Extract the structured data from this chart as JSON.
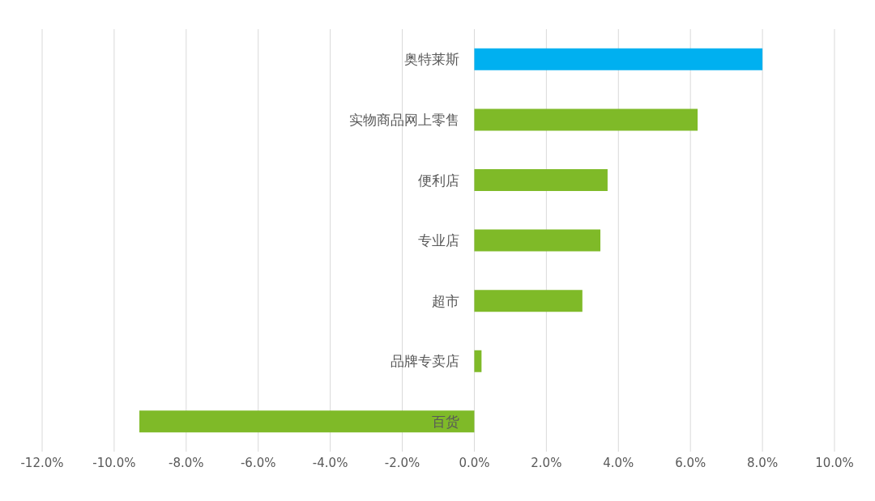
{
  "chart_data": {
    "type": "bar",
    "orientation": "horizontal",
    "categories": [
      "奥特莱斯",
      "实物商品网上零售",
      "便利店",
      "专业店",
      "超市",
      "品牌专卖店",
      "百货"
    ],
    "values": [
      8.0,
      6.2,
      3.7,
      3.5,
      3.0,
      0.2,
      -9.3
    ],
    "colors": [
      "#00b0f0",
      "#7fba28",
      "#7fba28",
      "#7fba28",
      "#7fba28",
      "#7fba28",
      "#7fba28"
    ],
    "xlim": [
      -12,
      10
    ],
    "xticks": [
      {
        "value": -12,
        "label": "-12.0%"
      },
      {
        "value": -10,
        "label": "-10.0%"
      },
      {
        "value": -8,
        "label": "-8.0%"
      },
      {
        "value": -6,
        "label": "-6.0%"
      },
      {
        "value": -4,
        "label": "-4.0%"
      },
      {
        "value": -2,
        "label": "-2.0%"
      },
      {
        "value": 0,
        "label": "0.0%"
      },
      {
        "value": 2,
        "label": "2.0%"
      },
      {
        "value": 4,
        "label": "4.0%"
      },
      {
        "value": 6,
        "label": "6.0%"
      },
      {
        "value": 8,
        "label": "8.0%"
      },
      {
        "value": 10,
        "label": "10.0%"
      }
    ],
    "grid": "x"
  }
}
